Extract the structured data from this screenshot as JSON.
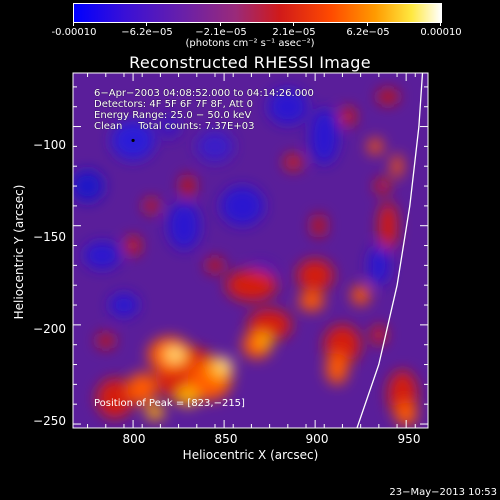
{
  "colorbar": {
    "ticks": [
      "-0.00010",
      "−6.2e−05",
      "−2.1e−05",
      "2.1e−05",
      "6.2e−05",
      "0.00010"
    ],
    "units": "(photons cm⁻² s⁻¹ asec⁻²)",
    "scale": "blue-purple-red-yellow-white"
  },
  "chart_data": {
    "type": "heatmap",
    "title": "Reconstructed RHESSI Image",
    "xlabel": "Heliocentric X (arcsec)",
    "ylabel": "Heliocentric Y (arcsec)",
    "xlim": [
      767,
      962
    ],
    "ylim": [
      -252,
      -73
    ],
    "xticks": [
      800,
      850,
      900,
      950
    ],
    "yticks": [
      -100,
      -150,
      -200,
      -250
    ],
    "xtick_labels": [
      "800",
      "850",
      "900",
      "950"
    ],
    "ytick_labels": [
      "−100",
      "−150",
      "−200",
      "−250"
    ],
    "color_range": [
      -0.0001,
      0.0001
    ],
    "peak": [
      823,
      -215
    ],
    "annotation_lines": [
      "6−Apr−2003 04:08:52.000 to 04:14:26.000",
      "Detectors: 4F 5F 6F 7F 8F, Att 0",
      "Energy Range: 25.0 − 50.0 keV",
      "Clean     Total counts: 7.37E+03"
    ],
    "peak_label": "Position of Peak = [823,−215]",
    "limb_points": [
      [
        923,
        -252
      ],
      [
        935,
        -220
      ],
      [
        945,
        -180
      ],
      [
        952,
        -140
      ],
      [
        957,
        -100
      ],
      [
        959,
        -73
      ]
    ]
  },
  "timestamp": "23−May−2013 10:53"
}
